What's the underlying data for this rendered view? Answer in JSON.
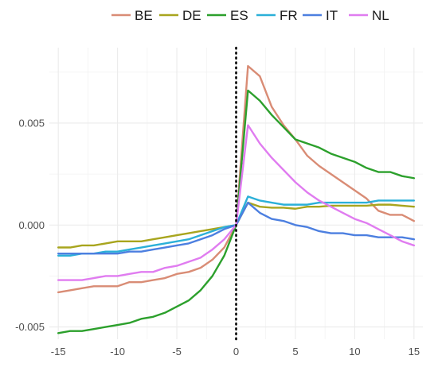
{
  "chart_data": {
    "type": "line",
    "title": "",
    "xlabel": "",
    "ylabel": "",
    "xlim": [
      -15.75,
      15.75
    ],
    "ylim": [
      -0.0056,
      0.0087
    ],
    "x_ticks": [
      -15,
      -10,
      -5,
      0,
      5,
      10,
      15
    ],
    "x_tick_labels": [
      "-15",
      "-10",
      "-5",
      "0",
      "5",
      "10",
      "15"
    ],
    "y_ticks": [
      -0.005,
      0.0,
      0.005
    ],
    "y_tick_labels": [
      "-0.005",
      "0.000",
      "0.005"
    ],
    "grid": true,
    "legend_position": "top",
    "reference_line": {
      "x": 0,
      "style": "dotted",
      "color": "#000000"
    },
    "x": [
      -15,
      -14,
      -13,
      -12,
      -11,
      -10,
      -9,
      -8,
      -7,
      -6,
      -5,
      -4,
      -3,
      -2,
      -1,
      0,
      1,
      2,
      3,
      4,
      5,
      6,
      7,
      8,
      9,
      10,
      11,
      12,
      13,
      14,
      15
    ],
    "series": [
      {
        "name": "BE",
        "color": "#D98C75",
        "values": [
          -0.0033,
          -0.0032,
          -0.0031,
          -0.003,
          -0.003,
          -0.003,
          -0.0028,
          -0.0028,
          -0.0027,
          -0.0026,
          -0.0024,
          -0.0023,
          -0.0021,
          -0.0017,
          -0.0011,
          0.0,
          0.0078,
          0.0073,
          0.0058,
          0.0049,
          0.0042,
          0.0034,
          0.0029,
          0.0025,
          0.0021,
          0.0017,
          0.0013,
          0.0007,
          0.0005,
          0.0005,
          0.0002
        ]
      },
      {
        "name": "DE",
        "color": "#A8A51E",
        "values": [
          -0.0011,
          -0.0011,
          -0.001,
          -0.001,
          -0.0009,
          -0.0008,
          -0.0008,
          -0.0008,
          -0.0007,
          -0.0006,
          -0.0005,
          -0.0004,
          -0.0003,
          -0.0002,
          -0.0001,
          0.0,
          0.0011,
          0.0009,
          0.00085,
          0.00085,
          0.0008,
          0.0009,
          0.0009,
          0.00095,
          0.00095,
          0.00095,
          0.00095,
          0.001,
          0.001,
          0.00095,
          0.0009
        ]
      },
      {
        "name": "ES",
        "color": "#2CA02C",
        "values": [
          -0.0053,
          -0.0052,
          -0.0052,
          -0.0051,
          -0.005,
          -0.0049,
          -0.0048,
          -0.0046,
          -0.0045,
          -0.0043,
          -0.004,
          -0.0037,
          -0.0032,
          -0.0025,
          -0.0015,
          0.0,
          0.0066,
          0.0061,
          0.0054,
          0.0048,
          0.0042,
          0.004,
          0.0038,
          0.0035,
          0.0033,
          0.0031,
          0.0028,
          0.0026,
          0.0026,
          0.0024,
          0.0023
        ]
      },
      {
        "name": "FR",
        "color": "#2BB0D8",
        "values": [
          -0.0015,
          -0.0015,
          -0.0014,
          -0.0014,
          -0.0013,
          -0.0013,
          -0.0012,
          -0.0011,
          -0.001,
          -0.0009,
          -0.0008,
          -0.0007,
          -0.0005,
          -0.0003,
          -0.0001,
          0.0,
          0.0014,
          0.0012,
          0.0011,
          0.001,
          0.001,
          0.001,
          0.0011,
          0.0011,
          0.0011,
          0.0011,
          0.0011,
          0.0012,
          0.0012,
          0.0012,
          0.0012
        ]
      },
      {
        "name": "IT",
        "color": "#4C7FE0",
        "values": [
          -0.0014,
          -0.0014,
          -0.0014,
          -0.0014,
          -0.0014,
          -0.0014,
          -0.0013,
          -0.0013,
          -0.0012,
          -0.0011,
          -0.001,
          -0.0009,
          -0.0007,
          -0.0005,
          -0.0002,
          0.0,
          0.0011,
          0.0006,
          0.0003,
          0.0002,
          0.0,
          -0.0001,
          -0.0003,
          -0.0004,
          -0.0004,
          -0.0005,
          -0.0005,
          -0.0006,
          -0.0006,
          -0.0006,
          -0.0007
        ]
      },
      {
        "name": "NL",
        "color": "#E07CF0",
        "values": [
          -0.0027,
          -0.0027,
          -0.0027,
          -0.0026,
          -0.0025,
          -0.0025,
          -0.0024,
          -0.0023,
          -0.0023,
          -0.0021,
          -0.002,
          -0.0018,
          -0.0016,
          -0.0012,
          -0.0007,
          0.0,
          0.0049,
          0.004,
          0.0033,
          0.0027,
          0.0021,
          0.0016,
          0.0012,
          0.0009,
          0.0006,
          0.0003,
          0.0001,
          -0.0002,
          -0.0005,
          -0.0008,
          -0.001
        ]
      }
    ]
  }
}
